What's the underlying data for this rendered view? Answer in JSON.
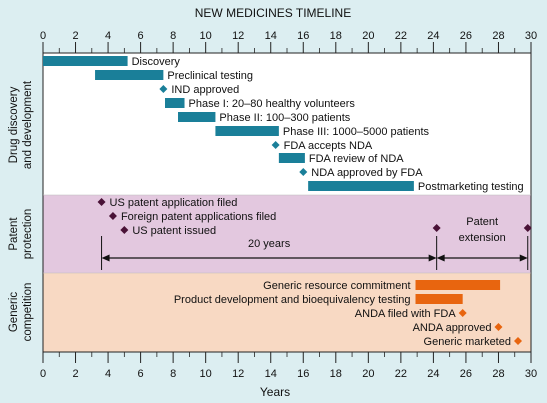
{
  "chart_data": {
    "type": "gantt",
    "title": "NEW MEDICINES TIMELINE",
    "xlabel": "Years",
    "xlim": [
      0,
      30
    ],
    "xticks": [
      0,
      2,
      4,
      6,
      8,
      10,
      12,
      14,
      16,
      18,
      20,
      22,
      24,
      26,
      28,
      30
    ],
    "colors": {
      "discovery_bar": "#1a7f99",
      "discovery_marker": "#1a7f99",
      "patent_marker": "#4a1237",
      "generic_bar": "#e8650f",
      "generic_marker": "#e8650f",
      "section_discovery_bg": "#ffffff",
      "section_patent_bg": "#e3c8df",
      "section_generic_bg": "#f8d9c3",
      "outer_bg": "#dceef1"
    },
    "sections": [
      {
        "label": "Drug discovery\nand development",
        "items": [
          {
            "kind": "bar",
            "label": "Discovery",
            "start": 0,
            "end": 5.2
          },
          {
            "kind": "bar",
            "label": "Preclinical testing",
            "start": 3.2,
            "end": 7.4
          },
          {
            "kind": "marker",
            "label": "IND approved",
            "at": 7.4
          },
          {
            "kind": "bar",
            "label": "Phase I: 20–80 healthy volunteers",
            "start": 7.5,
            "end": 8.7
          },
          {
            "kind": "bar",
            "label": "Phase II: 100–300 patients",
            "start": 8.3,
            "end": 10.6
          },
          {
            "kind": "bar",
            "label": "Phase III: 1000–5000 patients",
            "start": 10.6,
            "end": 14.5
          },
          {
            "kind": "marker",
            "label": "FDA accepts NDA",
            "at": 14.3
          },
          {
            "kind": "bar",
            "label": "FDA review of NDA",
            "start": 14.5,
            "end": 16.1
          },
          {
            "kind": "marker",
            "label": "NDA approved by FDA",
            "at": 16.0
          },
          {
            "kind": "bar",
            "label": "Postmarketing testing",
            "start": 16.3,
            "end": 22.8
          }
        ]
      },
      {
        "label": "Patent\nprotection",
        "items": [
          {
            "kind": "marker",
            "label": "US patent application filed",
            "at": 3.6
          },
          {
            "kind": "marker",
            "label": "Foreign patent applications filed",
            "at": 4.3
          },
          {
            "kind": "marker",
            "label": "US patent issued",
            "at": 5.0
          }
        ],
        "annotations": [
          {
            "type": "span_marker",
            "at": 24.2
          },
          {
            "type": "span_marker",
            "at": 29.8
          },
          {
            "type": "text",
            "label": "Patent\nextension"
          },
          {
            "type": "span_arrow",
            "label": "20 years",
            "start": 3.6,
            "end": 24.2
          },
          {
            "type": "span_arrow",
            "label": "",
            "start": 24.2,
            "end": 29.8
          }
        ]
      },
      {
        "label": "Generic\ncompetition",
        "items": [
          {
            "kind": "bar",
            "label": "Generic resource commitment",
            "start": 22.9,
            "end": 28.1
          },
          {
            "kind": "bar",
            "label": "Product development and bioequivalency testing",
            "start": 22.9,
            "end": 25.8
          },
          {
            "kind": "marker",
            "label": "ANDA filed with FDA",
            "at": 25.8
          },
          {
            "kind": "marker",
            "label": "ANDA approved",
            "at": 28.0
          },
          {
            "kind": "marker",
            "label": "Generic marketed",
            "at": 29.2
          }
        ]
      }
    ]
  }
}
